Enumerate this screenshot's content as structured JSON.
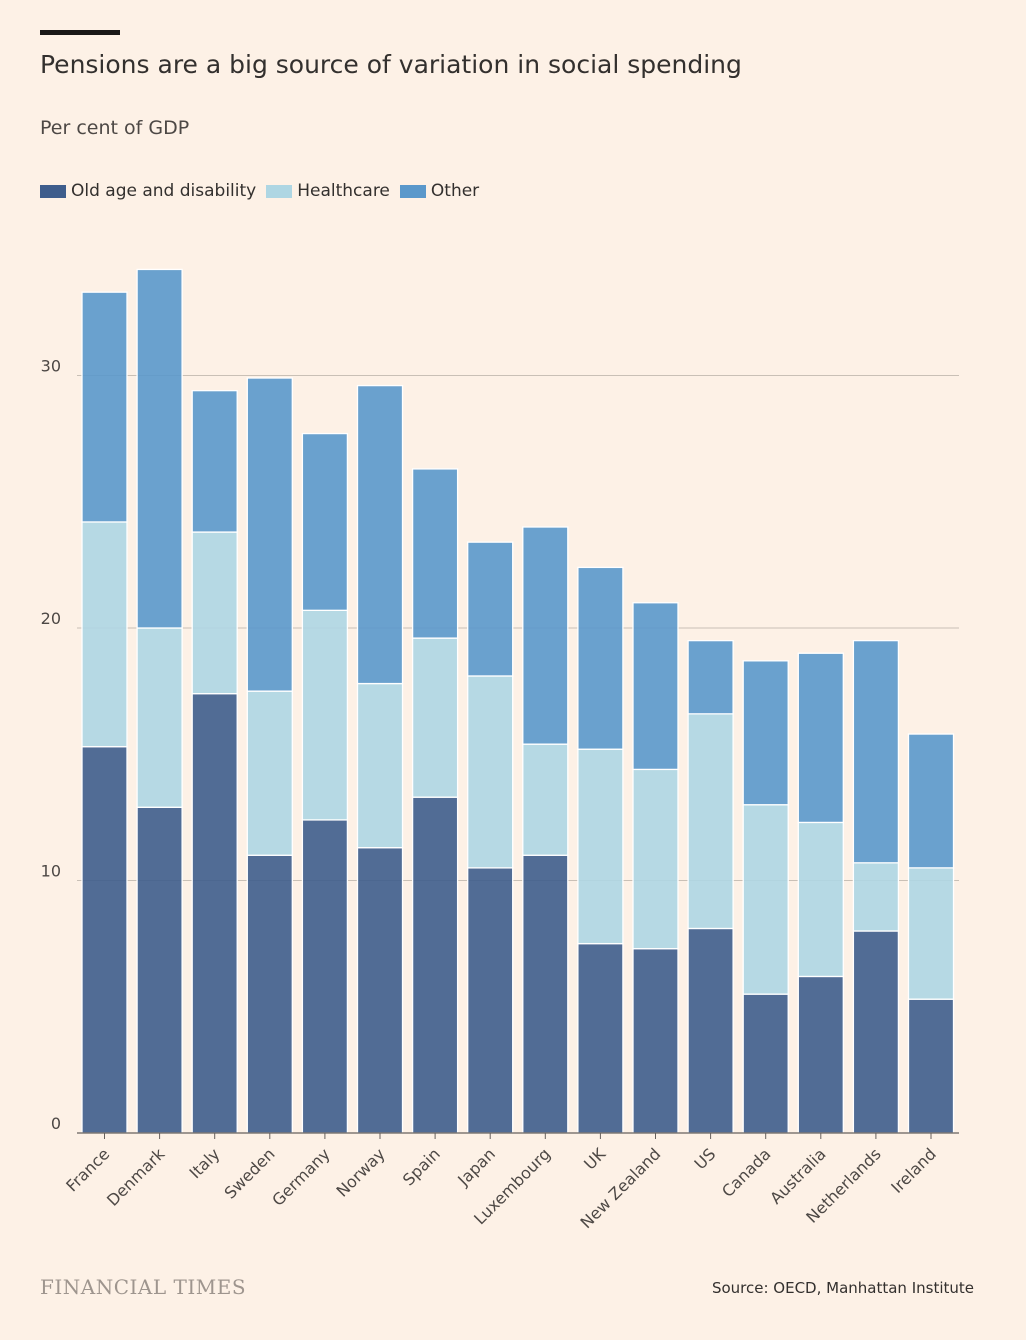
{
  "header": {
    "title": "Pensions are a big source of variation in social spending",
    "subtitle": "Per cent of GDP"
  },
  "footer": {
    "brand": "FINANCIAL TIMES",
    "source": "Source: OECD, Manhattan Institute"
  },
  "colors": {
    "old_age": "#3e5d8c",
    "healthcare": "#aed6e3",
    "other": "#5a98cb"
  },
  "chart_data": {
    "type": "bar",
    "stacked": true,
    "title": "Pensions are a big source of variation in social spending",
    "ylabel": "Per cent of GDP",
    "ylim": [
      0,
      35
    ],
    "yticks": [
      0,
      10,
      20,
      30
    ],
    "grid": true,
    "legend_position": "top-left",
    "categories": [
      "France",
      "Denmark",
      "Italy",
      "Sweden",
      "Germany",
      "Norway",
      "Spain",
      "Japan",
      "Luxembourg",
      "UK",
      "New Zealand",
      "US",
      "Canada",
      "Australia",
      "Netherlands",
      "Ireland"
    ],
    "series": [
      {
        "name": "Old age and disability",
        "color": "#3e5d8c",
        "values": [
          15.3,
          12.9,
          17.4,
          11.0,
          12.4,
          11.3,
          13.3,
          10.5,
          11.0,
          7.5,
          7.3,
          8.1,
          5.5,
          6.2,
          8.0,
          5.3
        ]
      },
      {
        "name": "Healthcare",
        "color": "#aed6e3",
        "values": [
          8.9,
          7.1,
          6.4,
          6.5,
          8.3,
          6.5,
          6.3,
          7.6,
          4.4,
          7.7,
          7.1,
          8.5,
          7.5,
          6.1,
          2.7,
          5.2
        ]
      },
      {
        "name": "Other",
        "color": "#5a98cb",
        "values": [
          9.1,
          14.2,
          5.6,
          12.4,
          7.0,
          11.8,
          6.7,
          5.3,
          8.6,
          7.2,
          6.6,
          2.9,
          5.7,
          6.7,
          8.8,
          5.3
        ]
      }
    ]
  }
}
